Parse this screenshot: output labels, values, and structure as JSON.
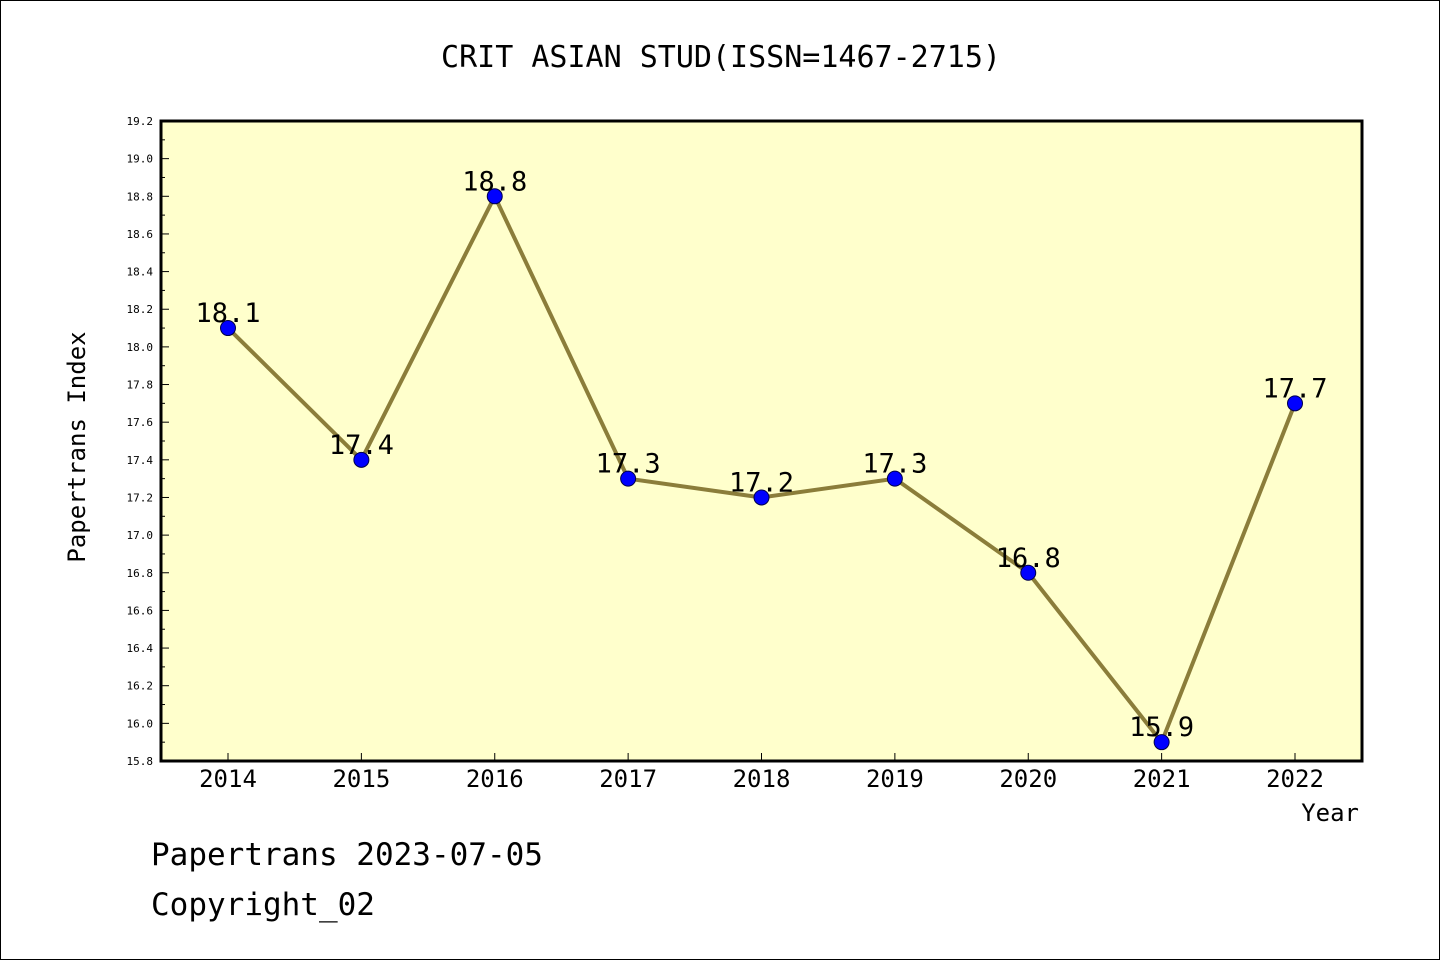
{
  "chart_data": {
    "type": "line",
    "title": "CRIT ASIAN STUD(ISSN=1467-2715)",
    "xlabel": "Year",
    "ylabel": "Papertrans Index",
    "categories": [
      "2014",
      "2015",
      "2016",
      "2017",
      "2018",
      "2019",
      "2020",
      "2021",
      "2022"
    ],
    "values": [
      18.1,
      17.4,
      18.8,
      17.3,
      17.2,
      17.3,
      16.8,
      15.9,
      17.7
    ],
    "data_labels": [
      "18.1",
      "17.4",
      "18.8",
      "17.3",
      "17.2",
      "17.3",
      "16.8",
      "15.9",
      "17.7"
    ],
    "ylim": [
      15.8,
      19.2
    ],
    "yticks": [
      "15.8",
      "16.0",
      "16.2",
      "16.4",
      "16.6",
      "16.8",
      "17.0",
      "17.2",
      "17.4",
      "17.6",
      "17.8",
      "18.0",
      "18.2",
      "18.4",
      "18.6",
      "18.8",
      "19.0",
      "19.2"
    ],
    "grid": false,
    "colors": {
      "plot_background": "#ffffcc",
      "line": "#8b7d3a",
      "marker": "#0000ff",
      "axis": "#000000"
    }
  },
  "footer": {
    "line1": "Papertrans 2023-07-05",
    "line2": "Copyright_02"
  }
}
